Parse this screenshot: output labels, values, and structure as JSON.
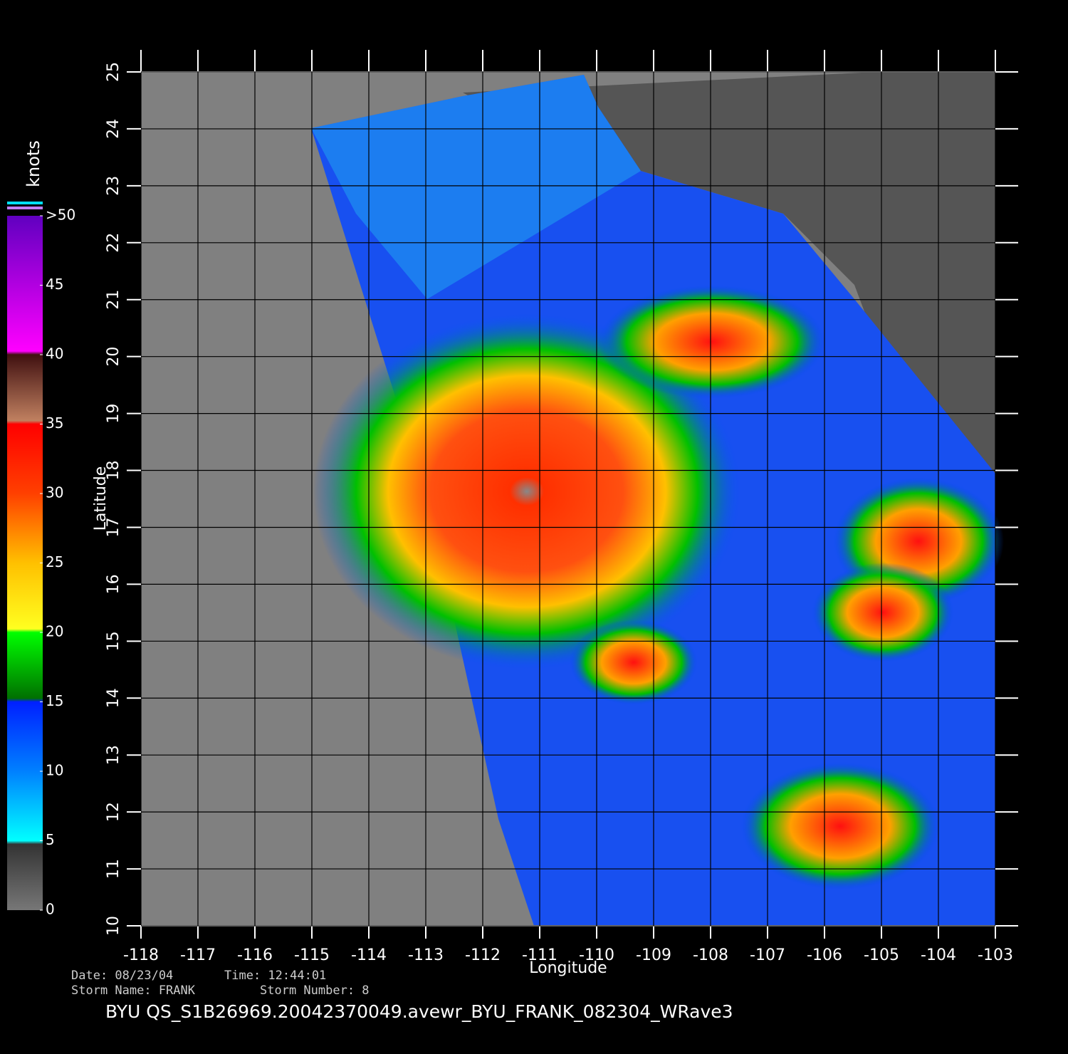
{
  "map": {
    "xlabel": "Longitude",
    "ylabel": "Latitude",
    "xlim": [
      -118,
      -103
    ],
    "ylim": [
      10,
      25
    ],
    "xticks": [
      -118,
      -117,
      -116,
      -115,
      -114,
      -113,
      -112,
      -111,
      -110,
      -109,
      -108,
      -107,
      -106,
      -105,
      -104,
      -103
    ],
    "yticks": [
      10,
      11,
      12,
      13,
      14,
      15,
      16,
      17,
      18,
      19,
      20,
      21,
      22,
      23,
      24,
      25
    ]
  },
  "colorbar": {
    "title": "knots",
    "lim": [
      0,
      50
    ],
    "ticks": [
      0,
      5,
      10,
      15,
      20,
      25,
      30,
      35,
      40,
      45,
      {
        "value": 50,
        "label": ">50"
      }
    ]
  },
  "info": {
    "date": "Date: 08/23/04",
    "time": "Time: 12:44:01",
    "storm_name": "Storm Name: FRANK",
    "storm_number": "Storm Number: 8",
    "file": "BYU  QS_S1B26969.20042370049.avewr_BYU_FRANK_082304_WRave3"
  }
}
